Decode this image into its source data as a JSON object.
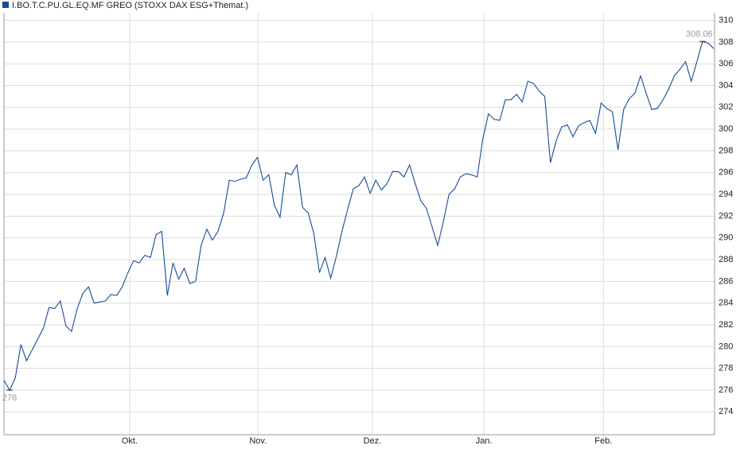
{
  "chart_data": {
    "type": "line",
    "title": "I.BO.T.C.PU.GL.EQ.MF GREO (STOXX DAX ESG+Themat.)",
    "series": [
      {
        "name": "I.BO.T.C.PU.GL.EQ.MF GREO (STOXX DAX ESG+Themat.)",
        "color": "#174a9c",
        "values": [
          276.9,
          276,
          277.1,
          280.2,
          278.7,
          279.7,
          280.7,
          281.7,
          283.6,
          283.5,
          284.2,
          281.9,
          281.4,
          283.5,
          284.9,
          285.5,
          284.0,
          284.1,
          284.2,
          284.8,
          284.7,
          285.5,
          286.8,
          287.9,
          287.7,
          288.4,
          288.2,
          290.3,
          290.6,
          284.7,
          287.7,
          286.2,
          287.2,
          285.8,
          286.0,
          289.3,
          290.8,
          289.8,
          290.6,
          292.3,
          295.3,
          295.2,
          295.4,
          295.5,
          296.7,
          297.4,
          295.3,
          295.8,
          293.0,
          291.9,
          296.0,
          295.8,
          296.7,
          292.8,
          292.3,
          290.4,
          286.8,
          288.2,
          286.3,
          288.3,
          290.6,
          292.6,
          294.5,
          294.8,
          295.6,
          294.1,
          295.3,
          294.4,
          295.0,
          296.1,
          296.1,
          295.6,
          296.7,
          295.0,
          293.4,
          292.7,
          291.0,
          289.3,
          291.5,
          294.0,
          294.5,
          295.6,
          295.9,
          295.8,
          295.6,
          299.1,
          301.4,
          300.9,
          300.8,
          302.7,
          302.7,
          303.2,
          302.5,
          304.4,
          304.2,
          303.5,
          303.0,
          296.9,
          298.9,
          300.2,
          300.4,
          299.3,
          300.3,
          300.6,
          300.8,
          299.6,
          302.4,
          301.9,
          301.6,
          298.1,
          301.8,
          302.8,
          303.3,
          304.9,
          303.3,
          301.8,
          301.9,
          302.7,
          303.7,
          304.9,
          305.5,
          306.2,
          304.4,
          306.2,
          308.06,
          307.9,
          307.4
        ],
        "value_labels": [
          null,
          "276",
          null,
          null,
          null,
          null,
          null,
          null,
          null,
          null,
          null,
          null,
          null,
          null,
          null,
          null,
          null,
          null,
          null,
          null,
          null,
          null,
          null,
          null,
          null,
          null,
          null,
          null,
          null,
          null,
          null,
          null,
          null,
          null,
          null,
          null,
          null,
          null,
          null,
          null,
          null,
          null,
          null,
          null,
          null,
          null,
          null,
          null,
          null,
          null,
          null,
          null,
          null,
          null,
          null,
          null,
          null,
          null,
          null,
          null,
          null,
          null,
          null,
          null,
          null,
          null,
          null,
          null,
          null,
          null,
          null,
          null,
          null,
          null,
          null,
          null,
          null,
          null,
          null,
          null,
          null,
          null,
          null,
          null,
          null,
          null,
          null,
          null,
          null,
          null,
          null,
          null,
          null,
          null,
          null,
          null,
          null,
          null,
          null,
          null,
          null,
          null,
          null,
          null,
          null,
          null,
          null,
          null,
          null,
          null,
          null,
          null,
          null,
          null,
          null,
          null,
          null,
          null,
          null,
          null,
          null,
          null,
          null,
          null,
          "308.06",
          null,
          null
        ]
      }
    ],
    "x": [
      0,
      1,
      2,
      3,
      4,
      5,
      6,
      7,
      8,
      9,
      10,
      11,
      12,
      13,
      14,
      15,
      16,
      17,
      18,
      19,
      20,
      21,
      22,
      23,
      24,
      25,
      26,
      27,
      28,
      29,
      30,
      31,
      32,
      33,
      34,
      35,
      36,
      37,
      38,
      39,
      40,
      41,
      42,
      43,
      44,
      45,
      46,
      47,
      48,
      49,
      50,
      51,
      52,
      53,
      54,
      55,
      56,
      57,
      58,
      59,
      60,
      61,
      62,
      63,
      64,
      65,
      66,
      67,
      68,
      69,
      70,
      71,
      72,
      73,
      74,
      75,
      76,
      77,
      78,
      79,
      80,
      81,
      82,
      83,
      84,
      85,
      86,
      87,
      88,
      89,
      90,
      91,
      92,
      93,
      94,
      95,
      96,
      97,
      98,
      99,
      100,
      101,
      102,
      103,
      104,
      105,
      106,
      107,
      108,
      109,
      110,
      111,
      112,
      113,
      114,
      115,
      116,
      117,
      118,
      119,
      120,
      121,
      122,
      123,
      124,
      125,
      126
    ],
    "xlim": [
      0,
      126
    ],
    "xticks": [
      {
        "value": 22.3,
        "label": "Okt."
      },
      {
        "value": 45.1,
        "label": "Nov."
      },
      {
        "value": 65.4,
        "label": "Dez."
      },
      {
        "value": 85.2,
        "label": "Jan."
      },
      {
        "value": 106.4,
        "label": "Feb."
      }
    ],
    "ylim": [
      271.9,
      310.7
    ],
    "yticks": [
      274,
      276,
      278,
      280,
      282,
      284,
      286,
      288,
      290,
      292,
      294,
      296,
      298,
      300,
      302,
      304,
      306,
      308,
      310
    ],
    "grid": true
  }
}
